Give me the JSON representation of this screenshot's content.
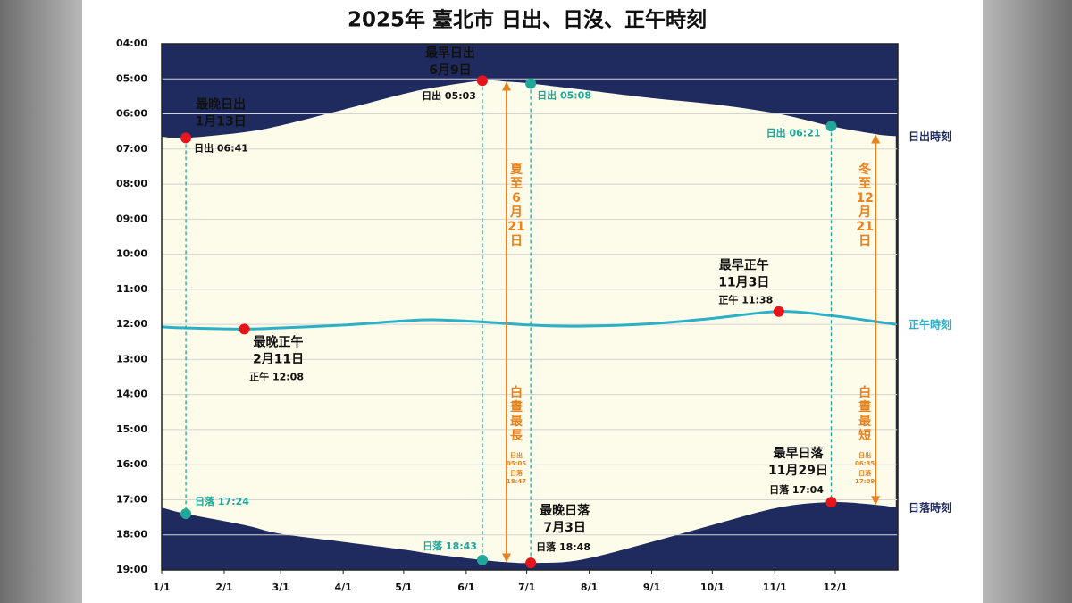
{
  "chart_data": {
    "type": "line",
    "title": "2025年 臺北市 日出、日沒、正午時刻",
    "x": [
      0,
      12,
      41,
      59,
      90,
      120,
      135,
      159,
      172,
      183,
      207,
      243,
      273,
      306,
      332,
      355,
      364
    ],
    "series": [
      {
        "name": "日出時刻",
        "color": "#1f2a5e",
        "values": [
          6.65,
          6.6833,
          6.52,
          6.33,
          5.88,
          5.43,
          5.25,
          5.05,
          5.0833,
          5.1333,
          5.3,
          5.55,
          5.72,
          6.0,
          6.35,
          6.5833,
          6.63
        ]
      },
      {
        "name": "正午時刻",
        "color": "#2bb0c8",
        "values": [
          12.07,
          12.1,
          12.1333,
          12.1,
          12.02,
          11.9,
          11.87,
          11.93,
          11.98,
          12.02,
          12.05,
          11.98,
          11.83,
          11.6333,
          11.75,
          11.93,
          12.0
        ]
      },
      {
        "name": "日落時刻",
        "color": "#1f2a5e",
        "values": [
          17.22,
          17.4,
          17.72,
          17.97,
          18.2,
          18.42,
          18.55,
          18.7167,
          18.7833,
          18.8,
          18.72,
          18.2,
          17.72,
          17.22,
          17.0667,
          17.15,
          17.22
        ]
      }
    ],
    "day_color": "#fdfbe9",
    "xlim": [
      0,
      365
    ],
    "xticks": [
      {
        "value": 0,
        "label": "1/1"
      },
      {
        "value": 31,
        "label": "2/1"
      },
      {
        "value": 59,
        "label": "3/1"
      },
      {
        "value": 90,
        "label": "4/1"
      },
      {
        "value": 120,
        "label": "5/1"
      },
      {
        "value": 151,
        "label": "6/1"
      },
      {
        "value": 181,
        "label": "7/1"
      },
      {
        "value": 212,
        "label": "8/1"
      },
      {
        "value": 243,
        "label": "9/1"
      },
      {
        "value": 273,
        "label": "10/1"
      },
      {
        "value": 304,
        "label": "11/1"
      },
      {
        "value": 334,
        "label": "12/1"
      }
    ],
    "ylim": [
      4,
      19
    ],
    "yticks": [
      {
        "value": 4,
        "label": "04:00"
      },
      {
        "value": 5,
        "label": "05:00"
      },
      {
        "value": 6,
        "label": "06:00"
      },
      {
        "value": 7,
        "label": "07:00"
      },
      {
        "value": 8,
        "label": "08:00"
      },
      {
        "value": 9,
        "label": "09:00"
      },
      {
        "value": 10,
        "label": "10:00"
      },
      {
        "value": 11,
        "label": "11:00"
      },
      {
        "value": 12,
        "label": "12:00"
      },
      {
        "value": 13,
        "label": "13:00"
      },
      {
        "value": 14,
        "label": "14:00"
      },
      {
        "value": 15,
        "label": "15:00"
      },
      {
        "value": 16,
        "label": "16:00"
      },
      {
        "value": 17,
        "label": "17:00"
      },
      {
        "value": 18,
        "label": "18:00"
      },
      {
        "value": 19,
        "label": "19:00"
      }
    ],
    "grid": true,
    "points": [
      {
        "x": 12,
        "y": 6.6833,
        "color": "#e8141c",
        "title": [
          "最晚日出",
          "1月13日"
        ],
        "label": "日出 06:41"
      },
      {
        "x": 12,
        "y": 17.4,
        "color": "#1fa89a",
        "label": "日落 17:24"
      },
      {
        "x": 159,
        "y": 5.05,
        "color": "#e8141c",
        "title": [
          "最早日出",
          "6月9日"
        ],
        "label": "日出 05:03"
      },
      {
        "x": 159,
        "y": 18.7167,
        "color": "#1fa89a",
        "label": "日落 18:43"
      },
      {
        "x": 183,
        "y": 5.1333,
        "color": "#1fa89a",
        "label": "日出 05:08"
      },
      {
        "x": 183,
        "y": 18.8,
        "color": "#e8141c",
        "title": [
          "最晚日落",
          "7月3日"
        ],
        "label": "日落 18:48"
      },
      {
        "x": 41,
        "y": 12.1333,
        "color": "#e8141c",
        "title": [
          "最晚正午",
          "2月11日"
        ],
        "label": "正午 12:08"
      },
      {
        "x": 306,
        "y": 11.6333,
        "color": "#e8141c",
        "title": [
          "最早正午",
          "11月3日"
        ],
        "label": "正午 11:38"
      },
      {
        "x": 332,
        "y": 17.0667,
        "color": "#e8141c",
        "title": [
          "最早日落",
          "11月29日"
        ],
        "label": "日落 17:04"
      },
      {
        "x": 332,
        "y": 6.35,
        "color": "#1fa89a",
        "label": "日出 06:21"
      }
    ],
    "solstices": [
      {
        "x": 171,
        "sunrise": 5.0833,
        "sunset": 18.7833,
        "color": "#e8821e",
        "title": "夏至6月21日",
        "subtitle": "白晝最長",
        "labels": [
          "日出05:05",
          "日落18:47"
        ]
      },
      {
        "x": 354,
        "sunrise": 6.5833,
        "sunset": 17.15,
        "color": "#e8821e",
        "title": "冬至12月21日",
        "subtitle": "白晝最短",
        "labels": [
          "日出06:35",
          "日落17:09"
        ]
      }
    ]
  }
}
